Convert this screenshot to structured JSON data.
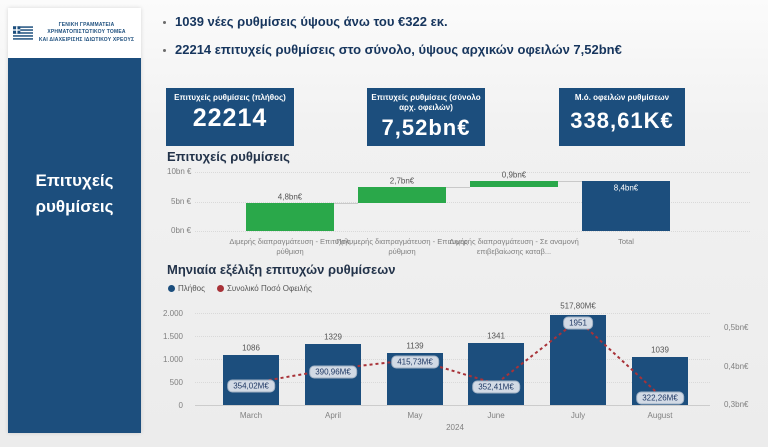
{
  "sidebar": {
    "org_line1": "ΓΕΝΙΚΗ ΓΡΑΜΜΑΤΕΙΑ ΧΡΗΜΑΤΟΠΙΣΤΩΤΙΚΟΥ ΤΟΜΕΑ",
    "org_line2": "ΚΑΙ ΔΙΑΧΕΙΡΙΣΗΣ ΙΔΙΩΤΙΚΟΥ ΧΡΕΟΥΣ",
    "page_title_line1": "Επιτυχείς",
    "page_title_line2": "ρυθμίσεις"
  },
  "highlights": [
    {
      "text": "1039 νέες ρυθμίσεις ύψους άνω του €322 εκ."
    },
    {
      "text": "22214 επιτυχείς ρυθμίσεις στο σύνολο, ύψους αρχικών οφειλών  7,52bn€"
    }
  ],
  "kpis": [
    {
      "label": "Επιτυχείς ρυθμίσεις (πλήθος)",
      "value": "22214"
    },
    {
      "label": "Επιτυχείς ρυθμίσεις (σύνολο αρχ. οφειλών)",
      "value": "7,52bn€"
    },
    {
      "label": "Μ.ό. οφειλών ρυθμίσεων",
      "value": "338,61Κ€"
    }
  ],
  "colors": {
    "navy": "#1c4e7d",
    "green": "#2aa84a",
    "line_red": "#a83238"
  },
  "chart_data": [
    {
      "type": "bar",
      "subtype": "waterfall",
      "title": "Επιτυχείς ρυθμίσεις",
      "categories": [
        "Διμερής διαπραγμάτευση - Επιτυχής ρύθμιση",
        "Πολυμερής διαπραγμάτευση - Επιτυχής ρύθμιση",
        "Διμερής διαπραγμάτευση - Σε αναμονή επιβεβαίωσης καταβ...",
        "Total"
      ],
      "values_bn": [
        4.8,
        2.7,
        0.9,
        8.4
      ],
      "value_labels": [
        "4,8bn€",
        "2,7bn€",
        "0,9bn€",
        "8,4bn€"
      ],
      "is_total": [
        false,
        false,
        false,
        true
      ],
      "ylabel": "",
      "xlabel": "",
      "ylim": [
        0,
        10
      ],
      "y_ticks": [
        "10bn €",
        "5bn €",
        "0bn €"
      ],
      "grid": true
    },
    {
      "type": "bar",
      "subtype": "bar+line-dual-axis",
      "title": "Μηνιαία εξέλιξη επιτυχών ρυθμίσεων",
      "categories": [
        "March",
        "April",
        "May",
        "June",
        "July",
        "August"
      ],
      "year_label": "2024",
      "series": [
        {
          "name": "Πλήθος",
          "type": "bar",
          "axis": "left",
          "values": [
            1086,
            1329,
            1139,
            1341,
            1951,
            1039
          ]
        },
        {
          "name": "Συνολικό Ποσό Οφειλής",
          "type": "line",
          "axis": "right",
          "values_meur": [
            354.02,
            390.96,
            415.73,
            352.41,
            517.8,
            322.26
          ],
          "value_labels": [
            "354,02M€",
            "390,96M€",
            "415,73M€",
            "352,41M€",
            "517,80M€",
            "322,26M€"
          ]
        }
      ],
      "left_axis": {
        "lim": [
          0,
          2000
        ],
        "ticks": [
          "2.000",
          "1.500",
          "1.000",
          "500",
          "0"
        ]
      },
      "right_axis": {
        "ticks": [
          "0,5bn€",
          "0,4bn€",
          "0,3bn€"
        ],
        "tick_values_bn": [
          0.5,
          0.4,
          0.3
        ]
      },
      "legend_position": "top-left",
      "grid": true
    }
  ]
}
